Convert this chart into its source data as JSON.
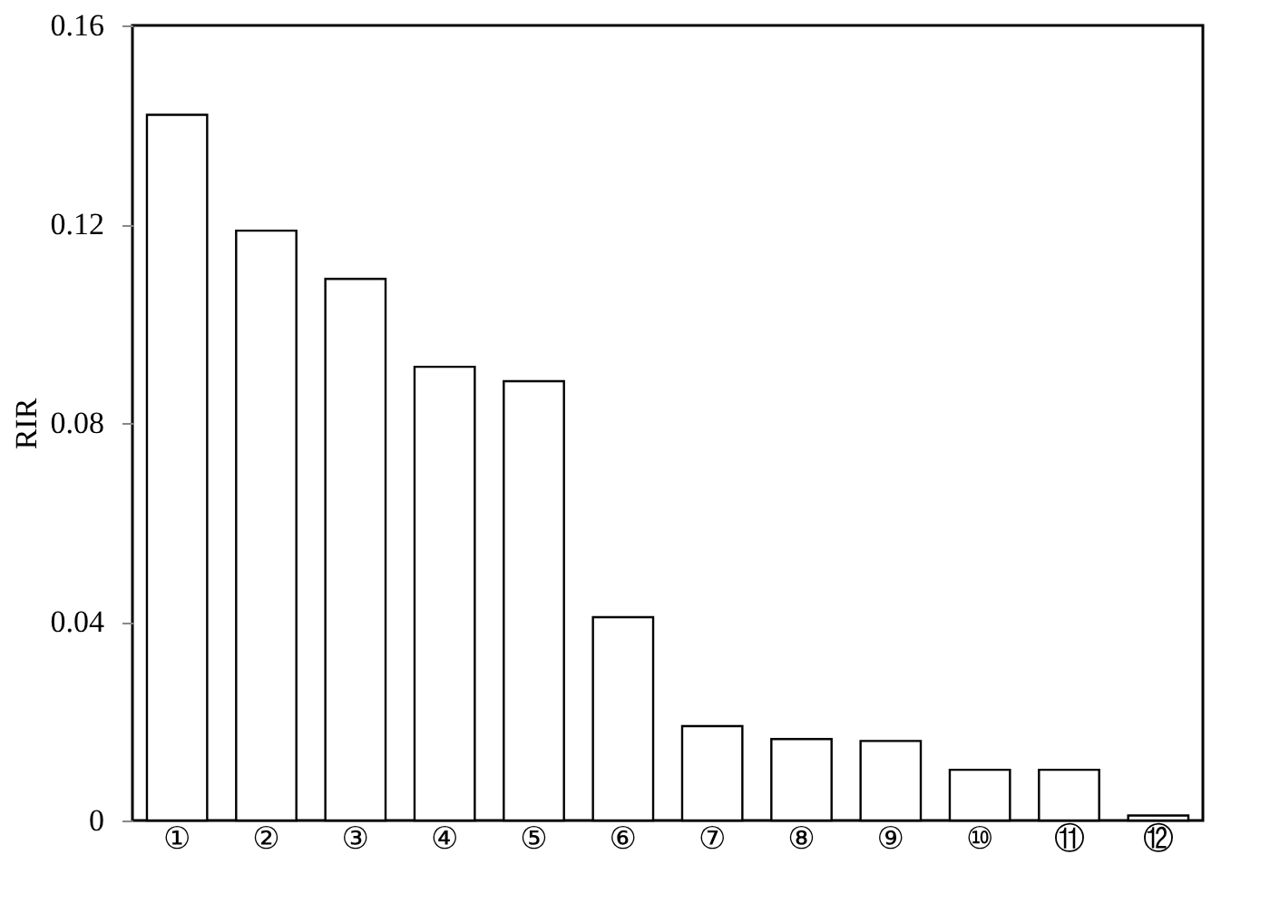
{
  "chart_data": {
    "type": "bar",
    "ylabel": "RIR",
    "categories": [
      "①",
      "②",
      "③",
      "④",
      "⑤",
      "⑥",
      "⑦",
      "⑧",
      "⑨",
      "⑩",
      "⑪",
      "⑫"
    ],
    "values": [
      0.142,
      0.1187,
      0.109,
      0.0913,
      0.0884,
      0.0409,
      0.019,
      0.0164,
      0.016,
      0.0102,
      0.0102,
      0.001
    ],
    "color": "#ffffff",
    "ylim": [
      0,
      0.16
    ],
    "yticks": [
      {
        "value": 0,
        "label": "0"
      },
      0.04,
      0.08,
      0.12,
      0.16
    ],
    "grid": false
  }
}
